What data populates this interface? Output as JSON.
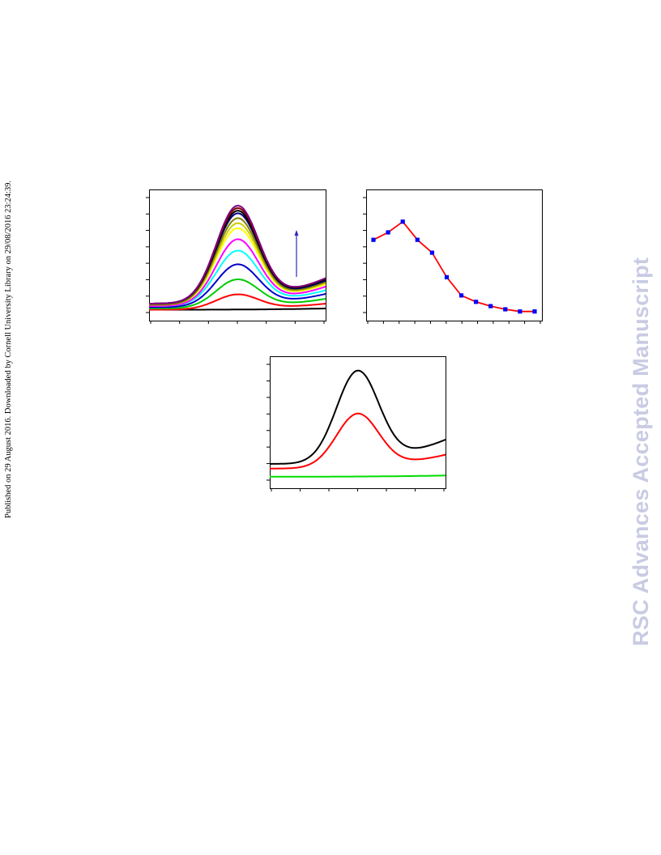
{
  "side_note": "Published on 29 August 2016. Downloaded by Cornell University Library on 29/08/2016 23:24:39.",
  "watermark": "RSC Advances Accepted Manuscript",
  "colors": {
    "watermark": "#c9cbe3",
    "arrow": "#2a2ab8",
    "trend_line": "#ff0000",
    "trend_marker": "#0000ff"
  },
  "chart_data": [
    {
      "type": "line",
      "title": "",
      "xlabel": "",
      "ylabel": "",
      "annotation": "upward arrow indicating increasing intensity",
      "xlim": [
        0,
        100
      ],
      "ylim": [
        0,
        1
      ],
      "peak_center": 50,
      "series": [
        {
          "color": "#000000",
          "peak": 0.0,
          "base_left": 0.05,
          "base_right": 0.06
        },
        {
          "color": "#ff0000",
          "peak": 0.12,
          "base_left": 0.05,
          "base_right": 0.1
        },
        {
          "color": "#00cc00",
          "peak": 0.23,
          "base_left": 0.06,
          "base_right": 0.14
        },
        {
          "color": "#0000cc",
          "peak": 0.34,
          "base_left": 0.07,
          "base_right": 0.18
        },
        {
          "color": "#00ffff",
          "peak": 0.44,
          "base_left": 0.08,
          "base_right": 0.21
        },
        {
          "color": "#ff00ff",
          "peak": 0.53,
          "base_left": 0.08,
          "base_right": 0.24
        },
        {
          "color": "#ffff00",
          "peak": 0.61,
          "base_left": 0.09,
          "base_right": 0.26
        },
        {
          "color": "#cccc00",
          "peak": 0.65,
          "base_left": 0.09,
          "base_right": 0.27
        },
        {
          "color": "#808000",
          "peak": 0.69,
          "base_left": 0.09,
          "base_right": 0.28
        },
        {
          "color": "#000080",
          "peak": 0.72,
          "base_left": 0.1,
          "base_right": 0.29
        },
        {
          "color": "#000000",
          "peak": 0.74,
          "base_left": 0.1,
          "base_right": 0.3
        },
        {
          "color": "#800000",
          "peak": 0.76,
          "base_left": 0.1,
          "base_right": 0.31
        },
        {
          "color": "#800080",
          "peak": 0.78,
          "base_left": 0.1,
          "base_right": 0.31
        }
      ]
    },
    {
      "type": "line",
      "title": "",
      "xlabel": "",
      "ylabel": "",
      "xlim": [
        0,
        12
      ],
      "ylim": [
        0,
        1
      ],
      "x": [
        0.5,
        1.5,
        2.5,
        3.5,
        4.5,
        5.5,
        6.5,
        7.5,
        8.5,
        9.5,
        10.5,
        11.5
      ],
      "y": [
        0.68,
        0.75,
        0.85,
        0.68,
        0.56,
        0.33,
        0.16,
        0.1,
        0.06,
        0.03,
        0.01,
        0.01
      ]
    },
    {
      "type": "line",
      "title": "",
      "xlabel": "",
      "ylabel": "",
      "xlim": [
        0,
        100
      ],
      "ylim": [
        0,
        1
      ],
      "peak_center": 50,
      "series": [
        {
          "color": "#000000",
          "peak": 0.78,
          "base_left": 0.14,
          "base_right": 0.35
        },
        {
          "color": "#ff0000",
          "peak": 0.46,
          "base_left": 0.1,
          "base_right": 0.22
        },
        {
          "color": "#00dd00",
          "peak": 0.0,
          "base_left": 0.03,
          "base_right": 0.04
        }
      ]
    }
  ]
}
